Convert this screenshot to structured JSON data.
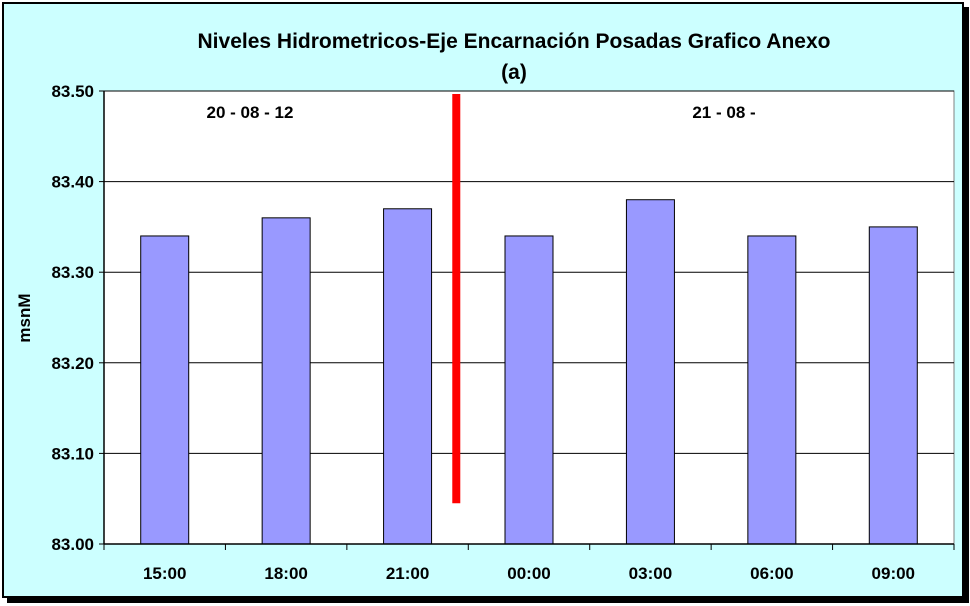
{
  "chart_data": {
    "type": "bar",
    "title": "Niveles Hidrometricos-Eje Encarnación Posadas Grafico Anexo",
    "subtitle": "(a)",
    "ylabel": "msnM",
    "xlabel": "",
    "categories": [
      "15:00",
      "18:00",
      "21:00",
      "00:00",
      "03:00",
      "06:00",
      "09:00"
    ],
    "values": [
      83.34,
      83.36,
      83.37,
      83.34,
      83.38,
      83.34,
      83.35
    ],
    "ylim": [
      83.0,
      83.5
    ],
    "yticks": [
      "83.00",
      "83.10",
      "83.20",
      "83.30",
      "83.40",
      "83.50"
    ],
    "ytick_values": [
      83.0,
      83.1,
      83.2,
      83.3,
      83.4,
      83.5
    ],
    "grid": true,
    "annotations": [
      "20 - 08 - 12",
      "21 - 08 -"
    ],
    "divider_after_category_index": 2,
    "divider_range": [
      83.045,
      83.5
    ],
    "colors": {
      "background": "#ccffff",
      "plot_area": "#ffffff",
      "bar_fill": "#9999ff",
      "bar_stroke": "#000000",
      "divider": "#ff0000"
    }
  }
}
